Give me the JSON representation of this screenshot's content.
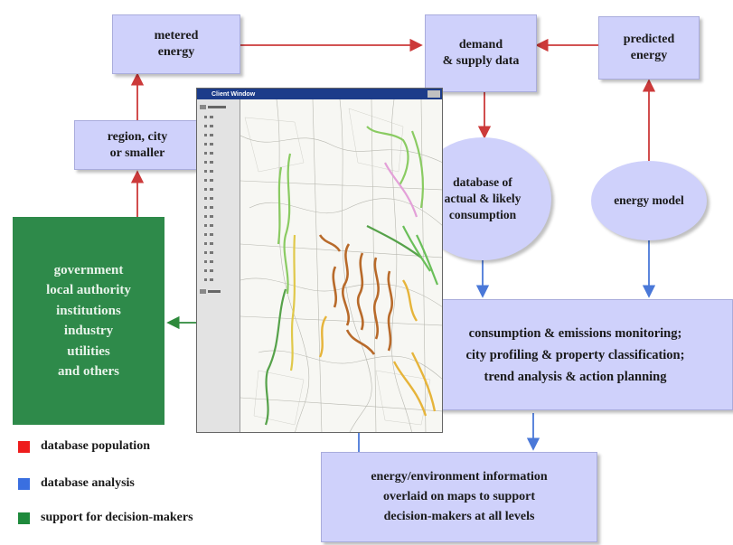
{
  "nodes": {
    "metered_energy": "metered\nenergy",
    "region_city": "region, city\nor smaller",
    "demand_supply": "demand\n& supply data",
    "predicted_energy": "predicted\nenergy",
    "database_consumption": "database of\nactual & likely\nconsumption",
    "energy_model": "energy model",
    "stakeholders": "government\nlocal authority\ninstitutions\nindustry\nutilities\nand others",
    "monitoring": "consumption & emissions monitoring;\ncity profiling & property classification;\ntrend analysis & action planning",
    "information": "energy/environment information\noverlaid on maps to support\ndecision-makers at all levels"
  },
  "map_window": {
    "title": "Client Window"
  },
  "legend": [
    {
      "label": "database population",
      "color": "#ee1c1c"
    },
    {
      "label": "database analysis",
      "color": "#3a6fe0"
    },
    {
      "label": "support for decision-makers",
      "color": "#1e8a3c"
    }
  ],
  "colors": {
    "population_arrow": "#cc3a3a",
    "analysis_arrow": "#4a78d8",
    "support_arrow": "#2e8a3c",
    "box_fill": "#cfd1fb",
    "stakeholder_fill": "#2e8a4a"
  }
}
